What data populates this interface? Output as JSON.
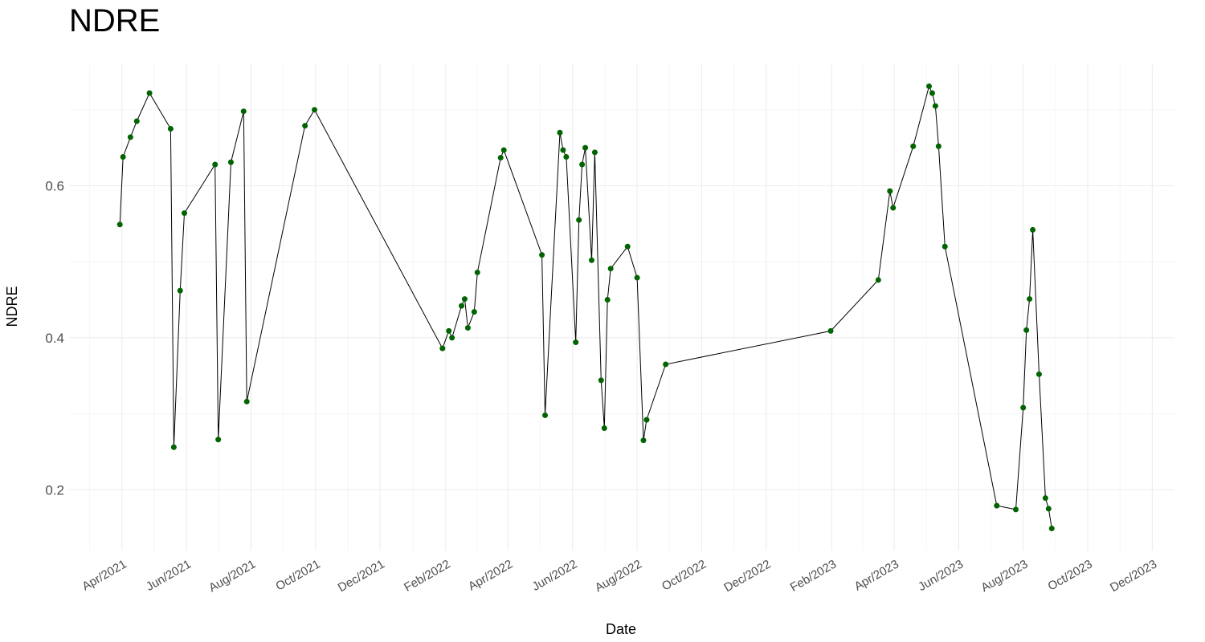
{
  "chart_data": {
    "type": "line",
    "title": "NDRE",
    "xlabel": "Date",
    "ylabel": "NDRE",
    "ylim": [
      0.12,
      0.76
    ],
    "y_ticks": [
      0.2,
      0.4,
      0.6
    ],
    "y_tick_labels": [
      "0.2",
      "0.4",
      "0.6"
    ],
    "x_range": [
      "2021-02-10",
      "2023-12-22"
    ],
    "x_ticks": [
      "2021-04-01",
      "2021-06-01",
      "2021-08-01",
      "2021-10-01",
      "2021-12-01",
      "2022-02-01",
      "2022-04-01",
      "2022-06-01",
      "2022-08-01",
      "2022-10-01",
      "2022-12-01",
      "2023-02-01",
      "2023-04-01",
      "2023-06-01",
      "2023-08-01",
      "2023-10-01",
      "2023-12-01"
    ],
    "x_tick_labels": [
      "Apr/2021",
      "Jun/2021",
      "Aug/2021",
      "Oct/2021",
      "Dec/2021",
      "Feb/2022",
      "Apr/2022",
      "Jun/2022",
      "Aug/2022",
      "Oct/2022",
      "Dec/2022",
      "Feb/2023",
      "Apr/2023",
      "Jun/2023",
      "Aug/2023",
      "Oct/2023",
      "Dec/2023"
    ],
    "grid": true,
    "line_color": "#000000",
    "point_color": "#006400",
    "series": [
      {
        "x": [
          "2021-03-30",
          "2021-04-02",
          "2021-04-09",
          "2021-04-15",
          "2021-04-27",
          "2021-05-17",
          "2021-05-20",
          "2021-05-26",
          "2021-05-30",
          "2021-06-28",
          "2021-07-01",
          "2021-07-13",
          "2021-07-25",
          "2021-07-28",
          "2021-09-21",
          "2021-09-30",
          "2022-01-29",
          "2022-02-04",
          "2022-02-07",
          "2022-02-16",
          "2022-02-19",
          "2022-02-22",
          "2022-02-28",
          "2022-03-03",
          "2022-03-25",
          "2022-03-28",
          "2022-05-03",
          "2022-05-06",
          "2022-05-20",
          "2022-05-23",
          "2022-05-26",
          "2022-06-04",
          "2022-06-07",
          "2022-06-10",
          "2022-06-13",
          "2022-06-19",
          "2022-06-22",
          "2022-06-28",
          "2022-07-01",
          "2022-07-04",
          "2022-07-07",
          "2022-07-23",
          "2022-08-01",
          "2022-08-07",
          "2022-08-10",
          "2022-08-28",
          "2023-01-31",
          "2023-03-17",
          "2023-03-28",
          "2023-03-31",
          "2023-04-19",
          "2023-05-04",
          "2023-05-07",
          "2023-05-10",
          "2023-05-13",
          "2023-05-19",
          "2023-07-07",
          "2023-07-25",
          "2023-08-01",
          "2023-08-04",
          "2023-08-07",
          "2023-08-10",
          "2023-08-16",
          "2023-08-22",
          "2023-08-25",
          "2023-08-28"
        ],
        "values": [
          0.549,
          0.638,
          0.664,
          0.685,
          0.722,
          0.675,
          0.256,
          0.462,
          0.564,
          0.628,
          0.266,
          0.631,
          0.698,
          0.316,
          0.679,
          0.7,
          0.386,
          0.409,
          0.4,
          0.442,
          0.451,
          0.413,
          0.434,
          0.486,
          0.637,
          0.647,
          0.509,
          0.298,
          0.67,
          0.647,
          0.638,
          0.394,
          0.555,
          0.628,
          0.65,
          0.502,
          0.644,
          0.344,
          0.281,
          0.45,
          0.491,
          0.52,
          0.479,
          0.265,
          0.292,
          0.365,
          0.409,
          0.476,
          0.593,
          0.571,
          0.652,
          0.731,
          0.722,
          0.705,
          0.652,
          0.52,
          0.179,
          0.174,
          0.308,
          0.41,
          0.451,
          0.542,
          0.352,
          0.189,
          0.175,
          0.149
        ]
      }
    ]
  }
}
